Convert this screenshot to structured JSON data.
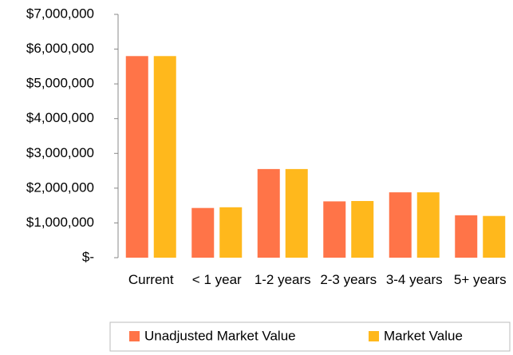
{
  "chart_data": {
    "type": "bar",
    "categories": [
      "Current",
      "< 1 year",
      "1-2 years",
      "2-3 years",
      "3-4 years",
      "5+ years"
    ],
    "series": [
      {
        "name": "Unadjusted Market Value",
        "color": "#ff7448",
        "values": [
          5800000,
          1430000,
          2550000,
          1620000,
          1880000,
          1220000
        ]
      },
      {
        "name": "Market Value",
        "color": "#ffb81c",
        "values": [
          5800000,
          1450000,
          2550000,
          1630000,
          1880000,
          1200000
        ]
      }
    ],
    "ylim": [
      0,
      7000000
    ],
    "yticks": [
      {
        "value": 0,
        "label": "$-"
      },
      {
        "value": 1000000,
        "label": "$1,000,000"
      },
      {
        "value": 2000000,
        "label": "$2,000,000"
      },
      {
        "value": 3000000,
        "label": "$3,000,000"
      },
      {
        "value": 4000000,
        "label": "$4,000,000"
      },
      {
        "value": 5000000,
        "label": "$5,000,000"
      },
      {
        "value": 6000000,
        "label": "$6,000,000"
      },
      {
        "value": 7000000,
        "label": "$7,000,000"
      }
    ],
    "grid": false,
    "legend": "bottom"
  }
}
